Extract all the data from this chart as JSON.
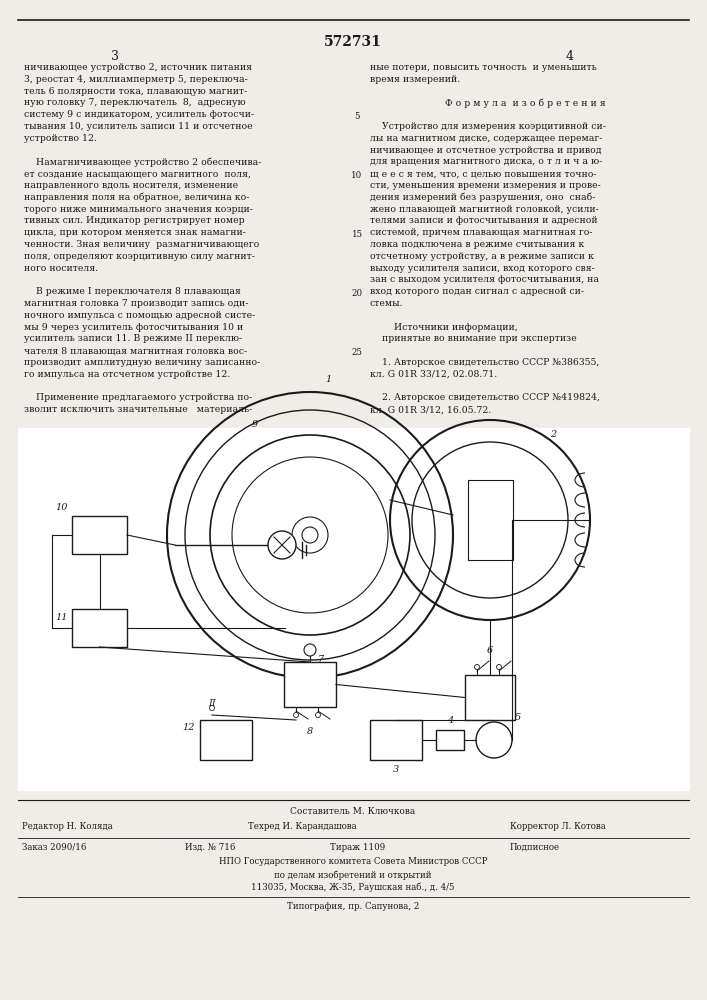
{
  "patent_number": "572731",
  "page_left": "3",
  "page_right": "4",
  "bg_color": "#f0ede8",
  "text_color": "#1a1a1a",
  "col_left_lines": [
    "ничивающее устройство 2, источник питания",
    "3, реостат 4, миллиамперметр 5, переключа-",
    "тель 6 полярности тока, плавающую магнит-",
    "ную головку 7, переключатель  8,  адресную",
    "систему 9 с индикатором, усилитель фотосчи-",
    "тывания 10, усилитель записи 11 и отсчетное",
    "устройство 12.",
    "",
    "    Намагничивающее устройство 2 обеспечива-",
    "ет создание насыщающего магнитного  поля,",
    "направленного вдоль носителя, изменение",
    "направления поля на обратное, величина ко-",
    "торого ниже минимального значения коэрци-",
    "тивных сил. Индикатор регистрирует номер",
    "цикла, при котором меняется знак намагни-",
    "ченности. Зная величину  размагничивающего",
    "поля, определяют коэрцитивную силу магнит-",
    "ного носителя.",
    "",
    "    В режиме I переключателя 8 плавающая",
    "магнитная головка 7 производит запись оди-",
    "ночного импульса с помощью адресной систе-",
    "мы 9 через усилитель фотосчитывания 10 и",
    "усилитель записи 11. В режиме II переклю-",
    "чателя 8 плавающая магнитная головка вос-",
    "производит амплитудную величину записанно-",
    "го импульса на отсчетном устройстве 12.",
    "",
    "    Применение предлагаемого устройства по-",
    "зволит исключить значительные   материаль-"
  ],
  "col_right_lines": [
    "ные потери, повысить точность  и уменьшить",
    "время измерений.",
    "",
    "Ф о р м у л а  и з о б р е т е н и я",
    "",
    "    Устройство для измерения коэрцитивной си-",
    "лы на магнитном диске, содержащее перемаг-",
    "ничивающее и отсчетное устройства и привод",
    "для вращения магнитного диска, о т л и ч а ю-",
    "щ е е с я тем, что, с целью повышения точно-",
    "сти, уменьшения времени измерения и прове-",
    "дения измерений без разрушения, оно  снаб-",
    "жено плавающей магнитной головкой, усили-",
    "телями записи и фотосчитывания и адресной",
    "системой, причем плавающая магнитная го-",
    "ловка подключена в режиме считывания к",
    "отсчетному устройству, а в режиме записи к",
    "выходу усилителя записи, вход которого свя-",
    "зан с выходом усилителя фотосчитывания, на",
    "вход которого подан сигнал с адресной си-",
    "стемы.",
    "",
    "        Источники информации,",
    "    принятые во внимание при экспертизе",
    "",
    "    1. Авторское свидетельство СССР №386355,",
    "кл. G 01R 33/12, 02.08.71.",
    "",
    "    2. Авторское свидетельство СССР №419824,",
    "кл. G 01R 3/12, 16.05.72."
  ],
  "line_numbers": [
    5,
    10,
    15,
    20,
    25
  ],
  "line_number_rows": [
    4,
    9,
    14,
    19,
    24
  ],
  "composer_label": "Составитель М. Ключкова",
  "editor_label": "Редактор Н. Коляда",
  "tech_label": "Техред И. Карандашова",
  "corrector_label": "Корректор Л. Котова",
  "order_label": "Заказ 2090/16",
  "pub_label": "Изд. № 716",
  "circulation_label": "Тираж 1109",
  "subscription_label": "Подписное",
  "org1": "НПО Государственного комитета Совета Министров СССР",
  "org2": "по делам изобретений и открытий",
  "org3": "113035, Москва, Ж-35, Раушская наб., д. 4/5",
  "print_org": "Типография, пр. Сапунова, 2"
}
